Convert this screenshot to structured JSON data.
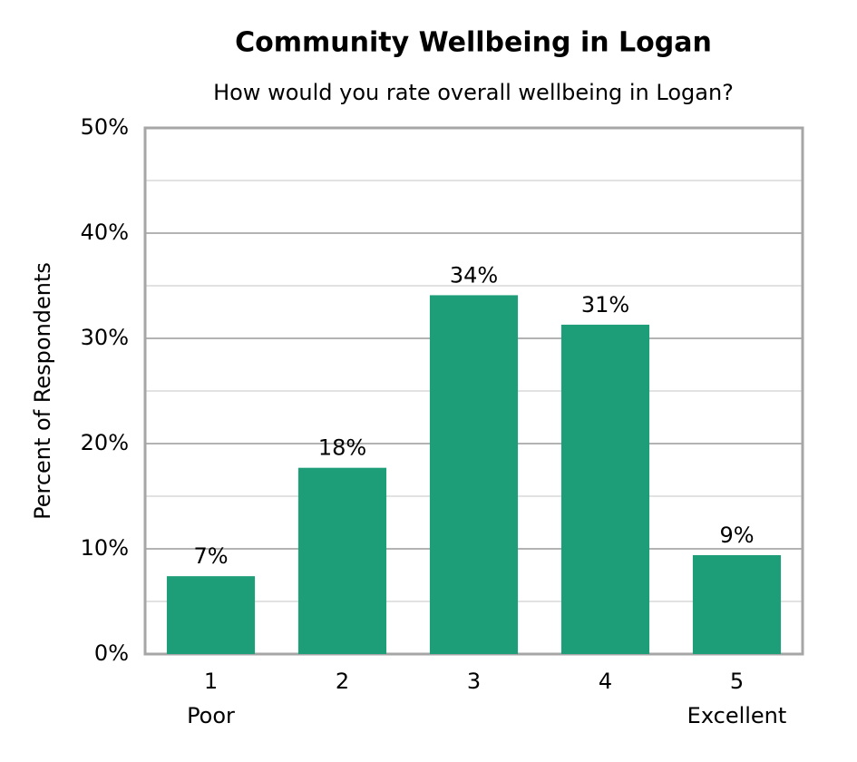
{
  "chart_data": {
    "type": "bar",
    "title": "Community Wellbeing in Logan",
    "subtitle": "How would you rate overall wellbeing in Logan?",
    "y_label": "Percent of Respondents",
    "categories": [
      "1",
      "2",
      "3",
      "4",
      "5"
    ],
    "category_descriptions": [
      "Poor",
      null,
      null,
      null,
      "Excellent"
    ],
    "values": [
      7.4,
      17.7,
      34.1,
      31.3,
      9.4
    ],
    "value_labels": [
      "7%",
      "18%",
      "34%",
      "31%",
      "9%"
    ],
    "color": "#1e9e78",
    "ylim": [
      0,
      50
    ],
    "yticks": [
      {
        "value": 0,
        "label": "0%"
      },
      {
        "value": 10,
        "label": "10%"
      },
      {
        "value": 20,
        "label": "20%"
      },
      {
        "value": 30,
        "label": "30%"
      },
      {
        "value": 40,
        "label": "40%"
      },
      {
        "value": 50,
        "label": "50%"
      }
    ],
    "y_minor_gridlines": [
      5,
      15,
      25,
      35,
      45
    ],
    "grid": true
  }
}
